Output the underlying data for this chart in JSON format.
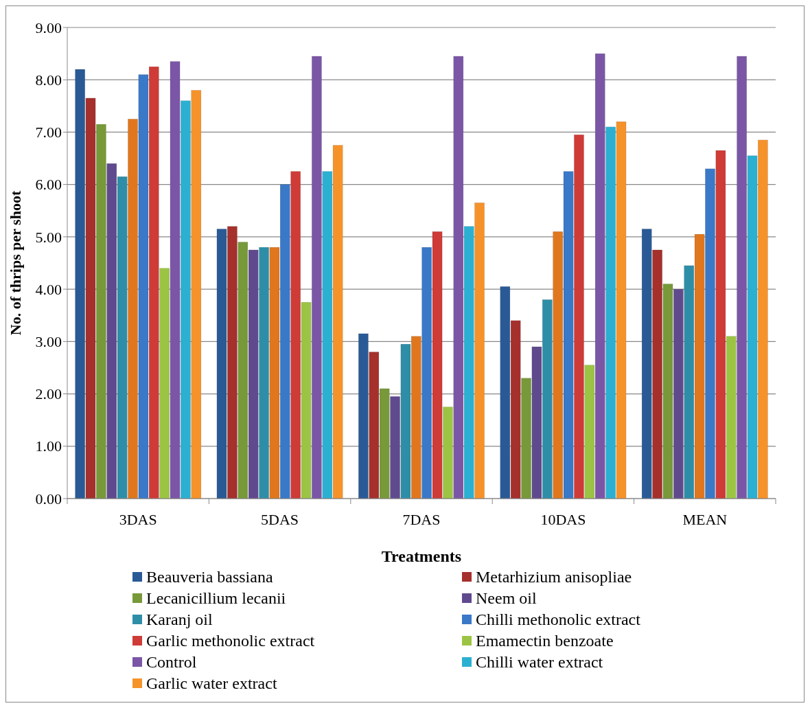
{
  "chart_data": {
    "type": "bar",
    "xlabel": "Treatments",
    "ylabel": "No. of thrips per shoot",
    "categories": [
      "3DAS",
      "5DAS",
      "7DAS",
      "10DAS",
      "MEAN"
    ],
    "ylim": [
      0,
      9
    ],
    "yticks": [
      {
        "value": 0,
        "label": "0.00"
      },
      {
        "value": 1,
        "label": "1.00"
      },
      {
        "value": 2,
        "label": "2.00"
      },
      {
        "value": 3,
        "label": "3.00"
      },
      {
        "value": 4,
        "label": "4.00"
      },
      {
        "value": 5,
        "label": "5.00"
      },
      {
        "value": 6,
        "label": "6.00"
      },
      {
        "value": 7,
        "label": "7.00"
      },
      {
        "value": 8,
        "label": "8.00"
      },
      {
        "value": 9,
        "label": "9.00"
      }
    ],
    "grid": "y",
    "legend": "bottom",
    "series": [
      {
        "name": "Beauveria bassiana",
        "color": "#2a5a96",
        "values": [
          8.2,
          5.15,
          3.15,
          4.05,
          5.15
        ]
      },
      {
        "name": "Metarhizium anisopliae",
        "color": "#a5302c",
        "values": [
          7.65,
          5.2,
          2.8,
          3.4,
          4.75
        ]
      },
      {
        "name": "Lecanicillium lecanii",
        "color": "#77993a",
        "values": [
          7.15,
          4.9,
          2.1,
          2.3,
          4.1
        ]
      },
      {
        "name": "Neem oil",
        "color": "#604a8e",
        "values": [
          6.4,
          4.75,
          1.95,
          2.9,
          4.0
        ]
      },
      {
        "name": "Karanj oil",
        "color": "#2e8ea8",
        "values": [
          6.15,
          4.8,
          2.95,
          3.8,
          4.45
        ]
      },
      {
        "color": "#e0771e",
        "values": [
          7.25,
          4.8,
          3.1,
          5.1,
          5.05
        ]
      },
      {
        "name": "Chilli methonolic extract",
        "color": "#3a78c8",
        "values": [
          8.1,
          6.0,
          4.8,
          6.25,
          6.3
        ]
      },
      {
        "name": "Garlic methonolic extract",
        "color": "#cf3b37",
        "values": [
          8.25,
          6.25,
          5.1,
          6.95,
          6.65
        ]
      },
      {
        "name": "Emamectin benzoate",
        "color": "#9cc444",
        "values": [
          4.4,
          3.75,
          1.75,
          2.55,
          3.1
        ]
      },
      {
        "name": "Control",
        "color": "#7b56a6",
        "values": [
          8.35,
          8.45,
          8.45,
          8.5,
          8.45
        ]
      },
      {
        "name": "Chilli water extract",
        "color": "#2cb0d2",
        "values": [
          7.6,
          6.25,
          5.2,
          7.1,
          6.55
        ]
      },
      {
        "name": "Garlic water extract",
        "color": "#f6922a",
        "values": [
          7.8,
          6.75,
          5.65,
          7.2,
          6.85
        ]
      }
    ]
  }
}
